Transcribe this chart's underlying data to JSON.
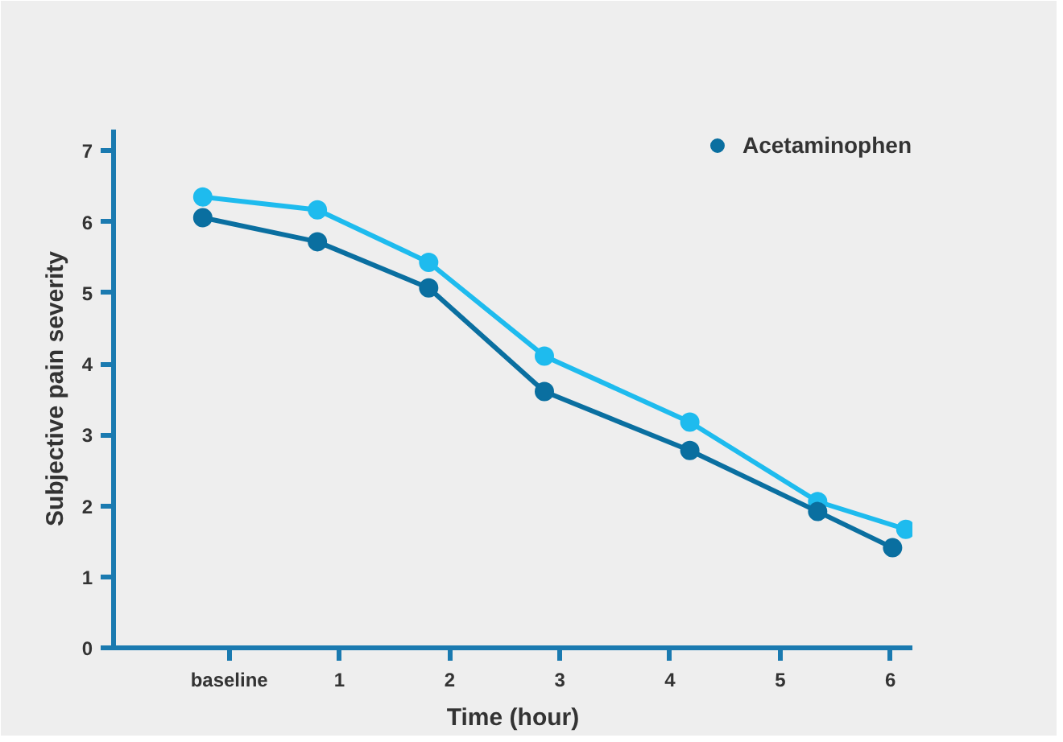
{
  "chart_data": {
    "type": "line",
    "xlabel": "Time (hour)",
    "ylabel": "Subjective pain severity",
    "xlim": [
      -1.05,
      6.2
    ],
    "xticks": [
      {
        "value": 0,
        "label": "baseline"
      },
      1,
      2,
      3,
      4,
      5,
      6
    ],
    "ylim": [
      0,
      7.3
    ],
    "yticks": [
      0,
      1,
      2,
      3,
      4,
      5,
      6,
      7
    ],
    "grid": false,
    "legend": "top right",
    "marker": "circle",
    "line_style": "solid",
    "series": [
      {
        "color": "#1ebbee",
        "x": [
          -0.24,
          0.8,
          1.81,
          2.86,
          4.18,
          5.34,
          6.14
        ],
        "values": [
          6.35,
          6.17,
          5.43,
          4.11,
          3.18,
          2.06,
          1.67
        ]
      },
      {
        "name": "Acetaminophen",
        "color": "#0a6fa0",
        "x": [
          -0.24,
          0.8,
          1.81,
          2.86,
          4.18,
          5.34,
          6.02
        ],
        "values": [
          6.06,
          5.72,
          5.07,
          3.61,
          2.78,
          1.92,
          1.41
        ]
      }
    ]
  }
}
